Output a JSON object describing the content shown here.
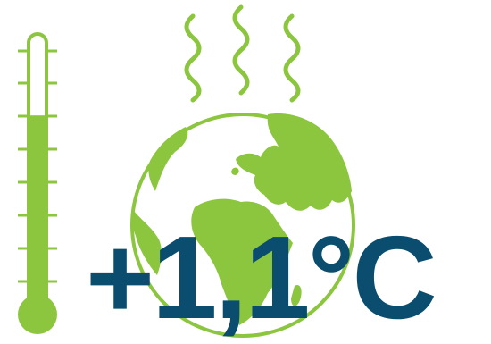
{
  "temperature": {
    "value": "+1,1°C"
  },
  "colors": {
    "green": "#8cc63f",
    "dark_blue": "#0a4d6e",
    "background": "#ffffff"
  },
  "icons": {
    "thermometer": "thermometer-icon",
    "heat_waves": "heat-waves-icon",
    "globe": "globe-icon"
  },
  "thermometer": {
    "fill_level": 0.72
  }
}
